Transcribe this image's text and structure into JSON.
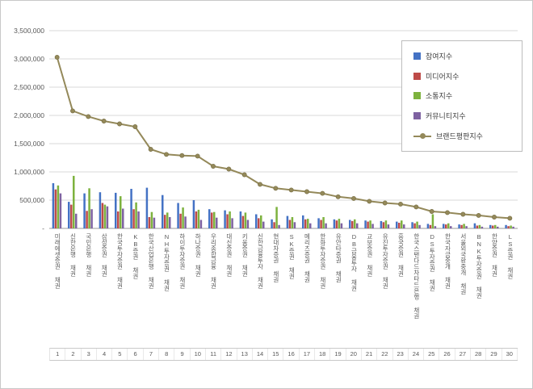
{
  "chart_data": {
    "type": "bar",
    "subtype": "grouped-bars-with-line-overlay",
    "title": "",
    "xlabel": "",
    "ylabel": "",
    "ylim": [
      0,
      3500000
    ],
    "grid": true,
    "ytick_labels_top_to_bottom": [
      "3,500,000",
      "3,000,000",
      "2,500,000",
      "2,000,000",
      "1,500,000",
      "1,000,000",
      "500,000",
      "-"
    ],
    "categories": [
      "미래에셋증권 채권",
      "신한은행 채권",
      "국민은행 채권",
      "삼성증권 채권",
      "한국투자증권 채권",
      "KB증권 채권",
      "한국산업은행 채권",
      "NH투자증권 채권",
      "하이투자증권 채권",
      "하나증권 채권",
      "우리종합금융 채권",
      "대신증권 채권",
      "키움증권 채권",
      "신한금융투자 채권",
      "현대차증권 채권",
      "SK증권 채권",
      "메리츠증권 채권",
      "한화투자증권 채권",
      "유안타증권 채권",
      "DB금융투자 채권",
      "교보증권 채권",
      "유진투자증권 채권",
      "흥국증권 채권",
      "한국스탠다드차타드은행 채권",
      "DS투자증권 채권",
      "한국자금중개 채권",
      "서울외국환중개 채권",
      "BNK투자증권 채권",
      "한양증권 채권",
      "LS증권 채권"
    ],
    "rank_labels": [
      "1",
      "2",
      "3",
      "4",
      "5",
      "6",
      "7",
      "8",
      "9",
      "10",
      "11",
      "12",
      "13",
      "14",
      "15",
      "16",
      "17",
      "18",
      "19",
      "20",
      "21",
      "22",
      "23",
      "24",
      "25",
      "26",
      "27",
      "28",
      "29",
      "30"
    ],
    "bar_series": [
      {
        "name": "참여지수",
        "color": "#4472C4",
        "values": [
          800000,
          470000,
          620000,
          640000,
          630000,
          700000,
          720000,
          590000,
          450000,
          500000,
          340000,
          320000,
          300000,
          250000,
          160000,
          220000,
          230000,
          180000,
          160000,
          150000,
          140000,
          130000,
          120000,
          110000,
          80000,
          80000,
          70000,
          90000,
          60000,
          60000
        ]
      },
      {
        "name": "미디어지수",
        "color": "#BE4B48",
        "values": [
          690000,
          420000,
          310000,
          450000,
          300000,
          340000,
          200000,
          240000,
          260000,
          300000,
          280000,
          250000,
          220000,
          180000,
          110000,
          150000,
          160000,
          150000,
          140000,
          130000,
          120000,
          110000,
          100000,
          90000,
          60000,
          70000,
          60000,
          50000,
          50000,
          40000
        ]
      },
      {
        "name": "소통지수",
        "color": "#7DB23E",
        "values": [
          760000,
          930000,
          710000,
          420000,
          570000,
          460000,
          290000,
          280000,
          370000,
          330000,
          290000,
          300000,
          280000,
          230000,
          380000,
          200000,
          170000,
          200000,
          170000,
          160000,
          140000,
          140000,
          140000,
          120000,
          250000,
          90000,
          80000,
          60000,
          60000,
          50000
        ]
      },
      {
        "name": "커뮤니티지수",
        "color": "#7E62A1",
        "values": [
          620000,
          260000,
          340000,
          390000,
          350000,
          300000,
          190000,
          200000,
          210000,
          150000,
          190000,
          180000,
          150000,
          120000,
          60000,
          110000,
          90000,
          90000,
          90000,
          90000,
          80000,
          70000,
          70000,
          60000,
          40000,
          40000,
          40000,
          30000,
          30000,
          30000
        ]
      }
    ],
    "line_series": {
      "name": "브랜드평판지수",
      "color": "#94895A",
      "values": [
        3030000,
        2080000,
        1980000,
        1900000,
        1850000,
        1800000,
        1400000,
        1310000,
        1290000,
        1280000,
        1100000,
        1050000,
        950000,
        780000,
        710000,
        680000,
        650000,
        620000,
        560000,
        530000,
        480000,
        450000,
        430000,
        380000,
        300000,
        280000,
        250000,
        230000,
        200000,
        180000
      ]
    },
    "legend": {
      "position": "right-top",
      "items": [
        "참여지수",
        "미디어지수",
        "소통지수",
        "커뮤니티지수",
        "브랜드평판지수"
      ]
    }
  }
}
